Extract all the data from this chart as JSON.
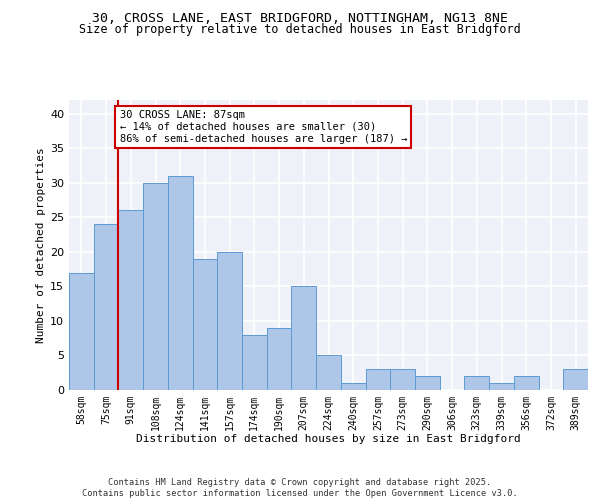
{
  "title_line1": "30, CROSS LANE, EAST BRIDGFORD, NOTTINGHAM, NG13 8NE",
  "title_line2": "Size of property relative to detached houses in East Bridgford",
  "xlabel": "Distribution of detached houses by size in East Bridgford",
  "ylabel": "Number of detached properties",
  "categories": [
    "58sqm",
    "75sqm",
    "91sqm",
    "108sqm",
    "124sqm",
    "141sqm",
    "157sqm",
    "174sqm",
    "190sqm",
    "207sqm",
    "224sqm",
    "240sqm",
    "257sqm",
    "273sqm",
    "290sqm",
    "306sqm",
    "323sqm",
    "339sqm",
    "356sqm",
    "372sqm",
    "389sqm"
  ],
  "values": [
    17,
    24,
    26,
    30,
    31,
    19,
    20,
    8,
    9,
    15,
    5,
    1,
    3,
    3,
    2,
    0,
    2,
    1,
    2,
    0,
    3
  ],
  "bar_color": "#aec6e8",
  "bar_edge_color": "#5b9bd5",
  "vline_x": 1.5,
  "vline_color": "#cc0000",
  "annotation_line1": "30 CROSS LANE: 87sqm",
  "annotation_line2": "← 14% of detached houses are smaller (30)",
  "annotation_line3": "86% of semi-detached houses are larger (187) →",
  "annotation_box_edge_color": "#cc0000",
  "annotation_fontsize": 7.5,
  "ylim": [
    0,
    42
  ],
  "yticks": [
    0,
    5,
    10,
    15,
    20,
    25,
    30,
    35,
    40
  ],
  "background_color": "#eef2f8",
  "grid_color": "#ffffff",
  "footer_text": "Contains HM Land Registry data © Crown copyright and database right 2025.\nContains public sector information licensed under the Open Government Licence v3.0.",
  "title_fontsize": 9.5,
  "title2_fontsize": 8.5,
  "xlabel_fontsize": 8,
  "ylabel_fontsize": 8,
  "tick_fontsize": 7,
  "ytick_fontsize": 8
}
